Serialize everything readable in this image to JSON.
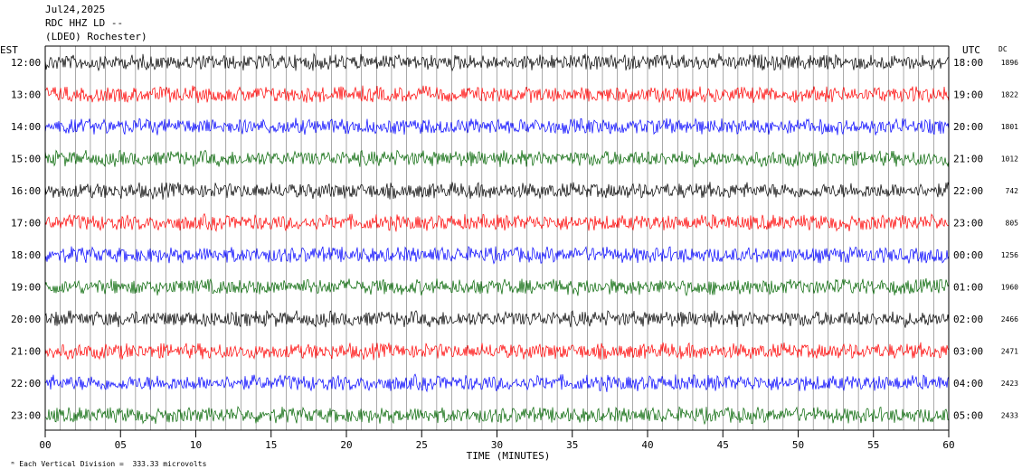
{
  "header": {
    "date": "Jul24,2025",
    "station": "RDC HHZ LD --",
    "network": "(LDEO) Rochester)"
  },
  "axes": {
    "left_label": "EST",
    "right_label": "UTC",
    "dc_label": "DC",
    "xlabel": "TIME (MINUTES)"
  },
  "footer": {
    "scale_text": "Each Vertical Division =  333.33 microvolts"
  },
  "colors": {
    "black": "#000000",
    "red": "#ff0000",
    "blue": "#0000ff",
    "green": "#006400"
  },
  "chart_data": {
    "type": "line",
    "x_range": [
      0,
      60
    ],
    "x_ticks": [
      "00",
      "05",
      "10",
      "15",
      "20",
      "25",
      "30",
      "35",
      "40",
      "45",
      "50",
      "55",
      "60"
    ],
    "grid": true,
    "rows": [
      {
        "est": "12:00",
        "utc": "18:00",
        "dc": "1896",
        "color": "black"
      },
      {
        "est": "13:00",
        "utc": "19:00",
        "dc": "1822",
        "color": "red"
      },
      {
        "est": "14:00",
        "utc": "20:00",
        "dc": "1801",
        "color": "blue"
      },
      {
        "est": "15:00",
        "utc": "21:00",
        "dc": "1012",
        "color": "green"
      },
      {
        "est": "16:00",
        "utc": "22:00",
        "dc": "742",
        "color": "black"
      },
      {
        "est": "17:00",
        "utc": "23:00",
        "dc": "805",
        "color": "red"
      },
      {
        "est": "18:00",
        "utc": "00:00",
        "dc": "1256",
        "color": "blue"
      },
      {
        "est": "19:00",
        "utc": "01:00",
        "dc": "1960",
        "color": "green"
      },
      {
        "est": "20:00",
        "utc": "02:00",
        "dc": "2466",
        "color": "black"
      },
      {
        "est": "21:00",
        "utc": "03:00",
        "dc": "2471",
        "color": "red"
      },
      {
        "est": "22:00",
        "utc": "04:00",
        "dc": "2423",
        "color": "blue"
      },
      {
        "est": "23:00",
        "utc": "05:00",
        "dc": "2433",
        "color": "green"
      }
    ]
  }
}
